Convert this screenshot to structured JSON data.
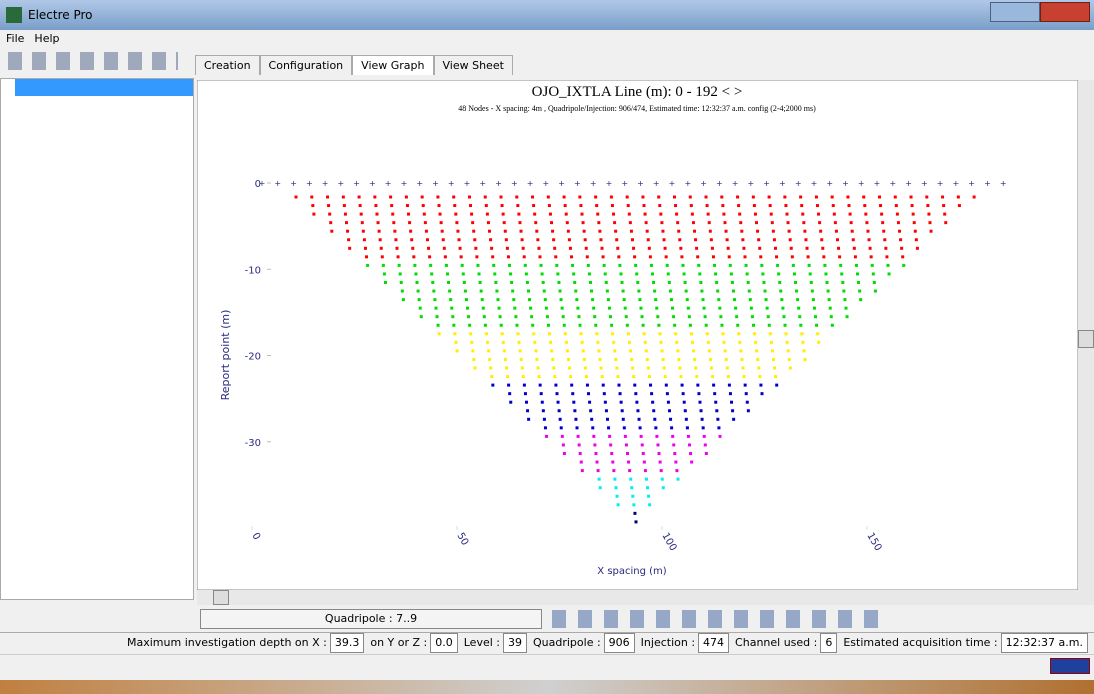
{
  "window": {
    "title": "Electre Pro"
  },
  "menu": [
    "File",
    "Help"
  ],
  "tabs": [
    "Creation",
    "Configuration",
    "View Graph",
    "View Sheet"
  ],
  "chart_data": {
    "type": "scatter",
    "title": "OJO_IXTLA   Line (m): 0 - 192 < >",
    "subtitle": "48 Nodes  - X spacing: 4m , Quadripole/Injection: 906/474, Estimated time: 12:32:37 a.m. config (2-4;2000 ms)",
    "x_label": "X spacing (m)",
    "y_label": "Report point (m)",
    "xlim": [
      0,
      200
    ],
    "xticks": [
      0,
      50,
      100,
      150
    ],
    "ylim": [
      -40,
      0
    ],
    "yticks": [
      0,
      -10,
      -20,
      -30
    ]
  },
  "toolbar": {
    "quadripole": "Quadripole : 7..9"
  },
  "status": [
    {
      "label": "Maximum investigation depth on X :",
      "value": "39.3"
    },
    {
      "label": "on Y or Z :",
      "value": "0.0"
    },
    {
      "label": "Level :",
      "value": "39"
    },
    {
      "label": "Quadripole :",
      "value": "906"
    },
    {
      "label": "Injection :",
      "value": "474"
    },
    {
      "label": "Channel used :",
      "value": "6"
    },
    {
      "label": "Estimated acquisition time :",
      "value": "12:32:37 a.m."
    }
  ]
}
